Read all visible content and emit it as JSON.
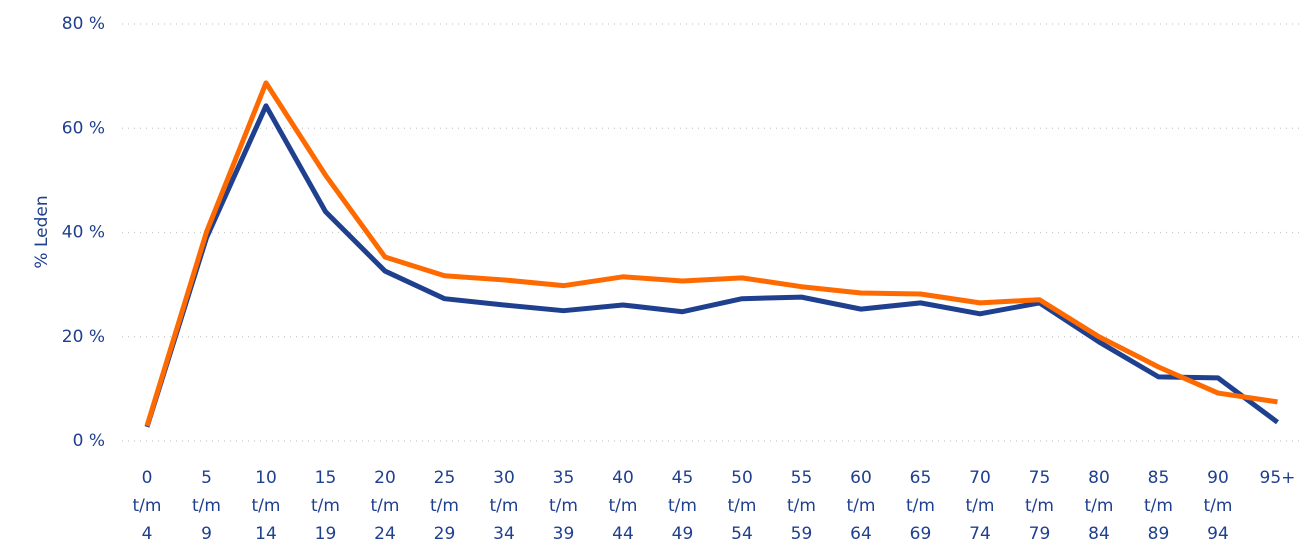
{
  "chart_data": {
    "type": "line",
    "y_label": "% Leden",
    "categories": [
      [
        "0",
        "t/m",
        "4"
      ],
      [
        "5",
        "t/m",
        "9"
      ],
      [
        "10",
        "t/m",
        "14"
      ],
      [
        "15",
        "t/m",
        "19"
      ],
      [
        "20",
        "t/m",
        "24"
      ],
      [
        "25",
        "t/m",
        "29"
      ],
      [
        "30",
        "t/m",
        "34"
      ],
      [
        "35",
        "t/m",
        "39"
      ],
      [
        "40",
        "t/m",
        "44"
      ],
      [
        "45",
        "t/m",
        "49"
      ],
      [
        "50",
        "t/m",
        "54"
      ],
      [
        "55",
        "t/m",
        "59"
      ],
      [
        "60",
        "t/m",
        "64"
      ],
      [
        "65",
        "t/m",
        "69"
      ],
      [
        "70",
        "t/m",
        "74"
      ],
      [
        "75",
        "t/m",
        "79"
      ],
      [
        "80",
        "t/m",
        "84"
      ],
      [
        "85",
        "t/m",
        "89"
      ],
      [
        "90",
        "t/m",
        "94"
      ],
      [
        "95+"
      ]
    ],
    "series": [
      {
        "color": "#1f3f8f",
        "values": [
          2.7,
          39,
          64.3,
          44,
          32.6,
          27.3,
          26.1,
          25,
          26.1,
          24.8,
          27.3,
          27.6,
          25.3,
          26.5,
          24.4,
          26.5,
          19,
          12.3,
          12.1,
          3.6
        ]
      },
      {
        "color": "#ff6a00",
        "values": [
          2.9,
          40.1,
          68.7,
          51,
          35.3,
          31.7,
          30.9,
          29.8,
          31.5,
          30.7,
          31.3,
          29.6,
          28.4,
          28.2,
          26.5,
          27.1,
          20,
          14.2,
          9.2,
          7.5
        ]
      }
    ],
    "ylim": [
      0,
      80
    ],
    "yticks": [
      {
        "value": 0,
        "label": "0 %"
      },
      {
        "value": 20,
        "label": "20 %"
      },
      {
        "value": 40,
        "label": "40 %"
      },
      {
        "value": 60,
        "label": "60 %"
      },
      {
        "value": 80,
        "label": "80 %"
      }
    ],
    "grid": true
  }
}
